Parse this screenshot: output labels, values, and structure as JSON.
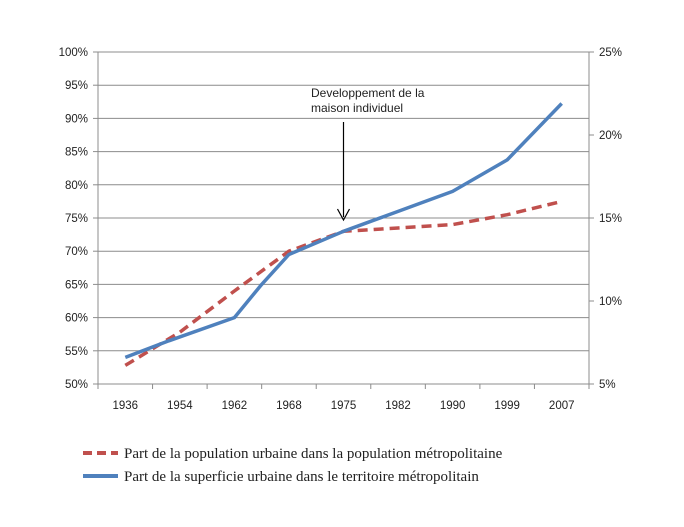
{
  "chart_data": {
    "type": "line",
    "categories": [
      "1936",
      "1954",
      "1962",
      "1968",
      "1975",
      "1982",
      "1990",
      "1999",
      "2007"
    ],
    "left_axis": {
      "ylim": [
        50,
        100
      ],
      "ticks": [
        50,
        55,
        60,
        65,
        70,
        75,
        80,
        85,
        90,
        95,
        100
      ],
      "tick_labels": [
        "50%",
        "55%",
        "60%",
        "65%",
        "70%",
        "75%",
        "80%",
        "85%",
        "90%",
        "95%",
        "100%"
      ]
    },
    "right_axis": {
      "ylim": [
        5,
        25
      ],
      "ticks": [
        5,
        10,
        15,
        20,
        25
      ],
      "tick_labels": [
        "5%",
        "10%",
        "15%",
        "20%",
        "25%"
      ]
    },
    "series": [
      {
        "name": "Part de la population urbaine dans la population métropolitaine",
        "axis": "left",
        "style": "dashed",
        "color": "#C0504D",
        "x": [
          0,
          1,
          2,
          3,
          4,
          5,
          6,
          7,
          8
        ],
        "values": [
          52.8,
          57.8,
          64.0,
          70.0,
          73.0,
          73.5,
          74.0,
          75.5,
          77.5
        ]
      },
      {
        "name": "Part de la superficie urbaine dans le territoire métropolitain",
        "axis": "right",
        "style": "solid",
        "color": "#4F81BD",
        "x": [
          0,
          0.8,
          2,
          2.5,
          3,
          4,
          4.5,
          5,
          6,
          7,
          8
        ],
        "values": [
          6.6,
          7.6,
          9.0,
          11.0,
          12.8,
          14.2,
          14.8,
          15.4,
          16.6,
          18.5,
          21.9
        ]
      }
    ],
    "annotation": {
      "lines": [
        "Developpement de la",
        "maison individuel"
      ],
      "category": "1975"
    }
  }
}
